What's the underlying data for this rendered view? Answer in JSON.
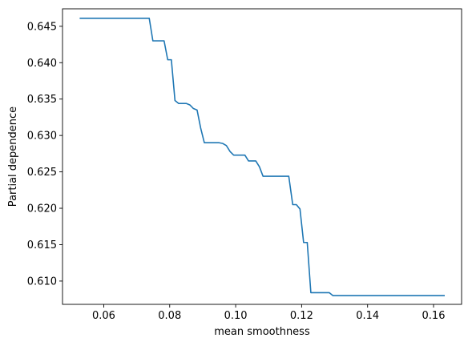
{
  "chart_data": {
    "type": "line",
    "title": "",
    "xlabel": "mean smoothness",
    "ylabel": "Partial dependence",
    "xlim": [
      0.0475,
      0.1685
    ],
    "ylim": [
      0.6068,
      0.6474
    ],
    "grid": false,
    "line_color": "#1f77b4",
    "xticks": [
      {
        "value": 0.06,
        "label": "0.06"
      },
      {
        "value": 0.08,
        "label": "0.08"
      },
      {
        "value": 0.1,
        "label": "0.10"
      },
      {
        "value": 0.12,
        "label": "0.12"
      },
      {
        "value": 0.14,
        "label": "0.14"
      },
      {
        "value": 0.16,
        "label": "0.16"
      }
    ],
    "yticks": [
      {
        "value": 0.61,
        "label": "0.610"
      },
      {
        "value": 0.615,
        "label": "0.615"
      },
      {
        "value": 0.62,
        "label": "0.620"
      },
      {
        "value": 0.625,
        "label": "0.625"
      },
      {
        "value": 0.63,
        "label": "0.630"
      },
      {
        "value": 0.635,
        "label": "0.635"
      },
      {
        "value": 0.64,
        "label": "0.640"
      },
      {
        "value": 0.645,
        "label": "0.645"
      }
    ],
    "series": [
      {
        "x": [
          0.0527,
          0.0738,
          0.0749,
          0.0771,
          0.0783,
          0.0794,
          0.0805,
          0.0816,
          0.0827,
          0.0838,
          0.085,
          0.0861,
          0.0872,
          0.0883,
          0.0894,
          0.0905,
          0.0916,
          0.0928,
          0.0939,
          0.095,
          0.0961,
          0.0972,
          0.0983,
          0.0994,
          0.1006,
          0.1017,
          0.1028,
          0.1039,
          0.105,
          0.1061,
          0.1072,
          0.1083,
          0.1095,
          0.1106,
          0.1117,
          0.1128,
          0.1139,
          0.115,
          0.1161,
          0.1173,
          0.1184,
          0.1195,
          0.1206,
          0.1217,
          0.1228,
          0.1239,
          0.1251,
          0.1262,
          0.1273,
          0.1284,
          0.1295,
          0.1306,
          0.1634
        ],
        "y": [
          0.6461,
          0.6461,
          0.643,
          0.643,
          0.643,
          0.6404,
          0.6404,
          0.6348,
          0.6344,
          0.6344,
          0.6344,
          0.6342,
          0.6337,
          0.6335,
          0.631,
          0.629,
          0.629,
          0.629,
          0.629,
          0.629,
          0.6289,
          0.6286,
          0.6278,
          0.6273,
          0.6273,
          0.6273,
          0.6273,
          0.6265,
          0.6265,
          0.6265,
          0.6257,
          0.6244,
          0.6244,
          0.6244,
          0.6244,
          0.6244,
          0.6244,
          0.6244,
          0.6244,
          0.6205,
          0.6205,
          0.6199,
          0.6153,
          0.6153,
          0.6084,
          0.6084,
          0.6084,
          0.6084,
          0.6084,
          0.6084,
          0.608,
          0.608,
          0.608
        ]
      }
    ]
  }
}
